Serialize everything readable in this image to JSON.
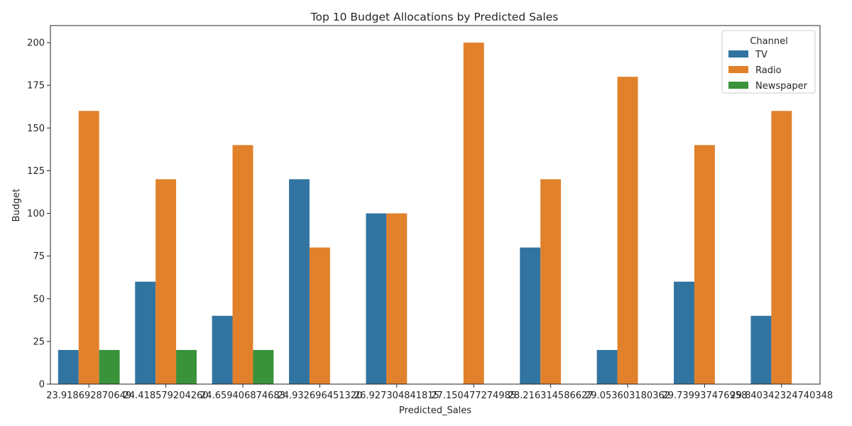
{
  "chart_data": {
    "type": "bar",
    "title": "Top 10 Budget Allocations by Predicted Sales",
    "xlabel": "Predicted_Sales",
    "ylabel": "Budget",
    "ylim": [
      0,
      210
    ],
    "yticks": [
      0,
      25,
      50,
      75,
      100,
      125,
      150,
      175,
      200
    ],
    "categories": [
      "23.918692870649",
      "24.418579204260",
      "24.659406874683",
      "24.932696451320",
      "26.927304841815",
      "27.150477274985",
      "28.216314586627",
      "29.053603180362",
      "29.739937476958",
      "29.840342324740348"
    ],
    "series": [
      {
        "name": "TV",
        "color": "#3274a1",
        "values": [
          20,
          60,
          40,
          120,
          100,
          0,
          80,
          20,
          60,
          40
        ]
      },
      {
        "name": "Radio",
        "color": "#e1812c",
        "values": [
          160,
          120,
          140,
          80,
          100,
          200,
          120,
          180,
          140,
          160
        ]
      },
      {
        "name": "Newspaper",
        "color": "#3a923a",
        "values": [
          20,
          20,
          20,
          0,
          0,
          0,
          0,
          0,
          0,
          0
        ]
      }
    ],
    "legend": {
      "title": "Channel",
      "placement": "top-right"
    },
    "grid": false
  }
}
